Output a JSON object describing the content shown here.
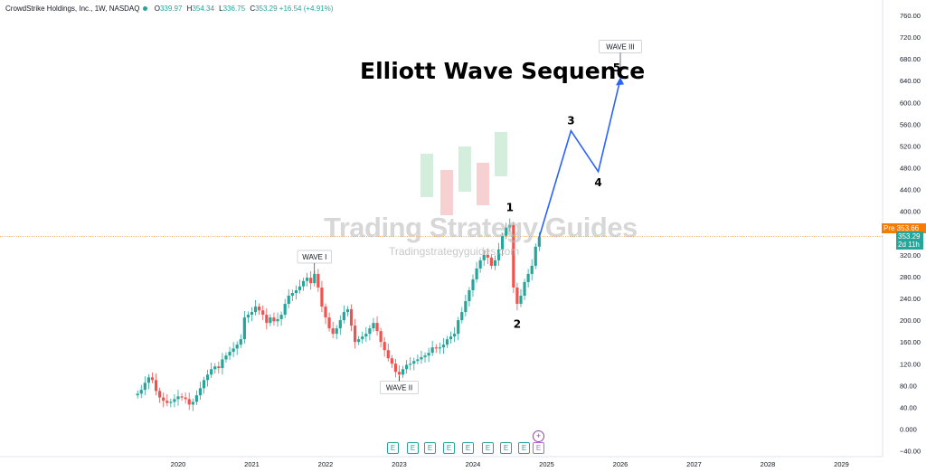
{
  "header": {
    "symbol": "CrowdStrike Holdings, Inc., 1W, NASDAQ",
    "o_label": "O",
    "o_value": "339.97",
    "h_label": "H",
    "h_value": "354.34",
    "l_label": "L",
    "l_value": "336.75",
    "c_label": "C",
    "c_value": "353.29",
    "change": "+16.54 (+4.91%)"
  },
  "colors": {
    "up": "#26a69a",
    "down": "#ef5350",
    "projection": "#2962ff",
    "pre_line": "#f57c00",
    "text": "#131722"
  },
  "watermark": {
    "title": "Trading Strategy Guides",
    "subtitle": "Tradingstrategyguides.com"
  },
  "price_tags": {
    "pre": "Pre 353.66",
    "last": "353.29",
    "countdown": "2d 11h"
  },
  "chart_data": {
    "type": "line",
    "title": "Elliott Wave Sequence",
    "xlabel": "",
    "ylabel": "",
    "ylim": [
      -40,
      760
    ],
    "y_ticks": [
      "760.00",
      "720.00",
      "680.00",
      "640.00",
      "600.00",
      "560.00",
      "520.00",
      "480.00",
      "440.00",
      "400.00",
      "360.00",
      "320.00",
      "280.00",
      "240.00",
      "200.00",
      "160.00",
      "120.00",
      "80.00",
      "40.00",
      "0.000",
      "−40.00"
    ],
    "y_tick_values": [
      760,
      720,
      680,
      640,
      600,
      560,
      520,
      480,
      440,
      400,
      360,
      320,
      280,
      240,
      200,
      160,
      120,
      80,
      40,
      0,
      -40
    ],
    "x_ticks": [
      "2020",
      "2021",
      "2022",
      "2023",
      "2024",
      "2025",
      "2026",
      "2027",
      "2028",
      "2029"
    ],
    "x_tick_values": [
      2020,
      2021,
      2022,
      2023,
      2024,
      2025,
      2026,
      2027,
      2028,
      2029
    ],
    "grid": true,
    "series": [
      {
        "type": "candlestick-trace",
        "points": [
          [
            2019.45,
            65
          ],
          [
            2019.5,
            72
          ],
          [
            2019.55,
            85
          ],
          [
            2019.6,
            95
          ],
          [
            2019.65,
            90
          ],
          [
            2019.7,
            70
          ],
          [
            2019.75,
            58
          ],
          [
            2019.8,
            52
          ],
          [
            2019.85,
            48
          ],
          [
            2019.9,
            50
          ],
          [
            2019.95,
            55
          ],
          [
            2020.0,
            60
          ],
          [
            2020.05,
            58
          ],
          [
            2020.1,
            55
          ],
          [
            2020.15,
            45
          ],
          [
            2020.2,
            50
          ],
          [
            2020.25,
            62
          ],
          [
            2020.3,
            75
          ],
          [
            2020.35,
            90
          ],
          [
            2020.4,
            100
          ],
          [
            2020.45,
            110
          ],
          [
            2020.5,
            115
          ],
          [
            2020.55,
            112
          ],
          [
            2020.6,
            128
          ],
          [
            2020.65,
            135
          ],
          [
            2020.7,
            142
          ],
          [
            2020.75,
            148
          ],
          [
            2020.8,
            155
          ],
          [
            2020.85,
            165
          ],
          [
            2020.9,
            205
          ],
          [
            2020.95,
            210
          ],
          [
            2021.0,
            215
          ],
          [
            2021.05,
            225
          ],
          [
            2021.1,
            218
          ],
          [
            2021.15,
            210
          ],
          [
            2021.2,
            195
          ],
          [
            2021.25,
            205
          ],
          [
            2021.3,
            198
          ],
          [
            2021.35,
            202
          ],
          [
            2021.4,
            210
          ],
          [
            2021.45,
            230
          ],
          [
            2021.5,
            245
          ],
          [
            2021.55,
            250
          ],
          [
            2021.6,
            255
          ],
          [
            2021.65,
            262
          ],
          [
            2021.7,
            272
          ],
          [
            2021.75,
            278
          ],
          [
            2021.8,
            268
          ],
          [
            2021.85,
            285
          ],
          [
            2021.9,
            260
          ],
          [
            2021.95,
            225
          ],
          [
            2022.0,
            205
          ],
          [
            2022.05,
            185
          ],
          [
            2022.1,
            175
          ],
          [
            2022.15,
            185
          ],
          [
            2022.2,
            200
          ],
          [
            2022.25,
            215
          ],
          [
            2022.3,
            220
          ],
          [
            2022.35,
            190
          ],
          [
            2022.4,
            160
          ],
          [
            2022.45,
            165
          ],
          [
            2022.5,
            170
          ],
          [
            2022.55,
            175
          ],
          [
            2022.6,
            185
          ],
          [
            2022.65,
            195
          ],
          [
            2022.7,
            180
          ],
          [
            2022.75,
            160
          ],
          [
            2022.8,
            145
          ],
          [
            2022.85,
            130
          ],
          [
            2022.9,
            120
          ],
          [
            2022.95,
            105
          ],
          [
            2023.0,
            100
          ],
          [
            2023.05,
            110
          ],
          [
            2023.1,
            118
          ],
          [
            2023.15,
            120
          ],
          [
            2023.2,
            125
          ],
          [
            2023.25,
            128
          ],
          [
            2023.3,
            132
          ],
          [
            2023.35,
            135
          ],
          [
            2023.4,
            140
          ],
          [
            2023.45,
            150
          ],
          [
            2023.5,
            148
          ],
          [
            2023.55,
            150
          ],
          [
            2023.6,
            155
          ],
          [
            2023.65,
            165
          ],
          [
            2023.7,
            170
          ],
          [
            2023.75,
            175
          ],
          [
            2023.8,
            200
          ],
          [
            2023.85,
            215
          ],
          [
            2023.9,
            235
          ],
          [
            2023.95,
            255
          ],
          [
            2024.0,
            275
          ],
          [
            2024.05,
            295
          ],
          [
            2024.1,
            310
          ],
          [
            2024.15,
            320
          ],
          [
            2024.2,
            315
          ],
          [
            2024.25,
            300
          ],
          [
            2024.3,
            310
          ],
          [
            2024.35,
            330
          ],
          [
            2024.4,
            355
          ],
          [
            2024.45,
            370
          ],
          [
            2024.5,
            375
          ],
          [
            2024.55,
            260
          ],
          [
            2024.6,
            230
          ],
          [
            2024.65,
            245
          ],
          [
            2024.7,
            270
          ],
          [
            2024.75,
            285
          ],
          [
            2024.8,
            300
          ],
          [
            2024.85,
            335
          ],
          [
            2024.9,
            353
          ]
        ]
      },
      {
        "name": "",
        "type": "projection",
        "points": [
          [
            2024.9,
            353
          ],
          [
            2025.33,
            548
          ],
          [
            2025.7,
            473
          ],
          [
            2026.0,
            643
          ]
        ]
      }
    ],
    "annotations": [
      {
        "text": "WAVE I",
        "x": 2021.85,
        "y": 285,
        "style": "box"
      },
      {
        "text": "WAVE II",
        "x": 2023.0,
        "y": 98,
        "style": "box-below"
      },
      {
        "text": "WAVE III",
        "x": 2026.0,
        "y": 648,
        "style": "box-top"
      },
      {
        "text": "1",
        "x": 2024.5,
        "y": 400,
        "style": "num"
      },
      {
        "text": "2",
        "x": 2024.6,
        "y": 196,
        "style": "num-below"
      },
      {
        "text": "3",
        "x": 2025.33,
        "y": 560,
        "style": "num"
      },
      {
        "text": "4",
        "x": 2025.7,
        "y": 456,
        "style": "num-below"
      },
      {
        "text": "5",
        "x": 2025.95,
        "y": 657,
        "style": "num"
      }
    ],
    "earnings_markers": {
      "label": "E",
      "future_label": "E",
      "plus_label": "+"
    }
  }
}
